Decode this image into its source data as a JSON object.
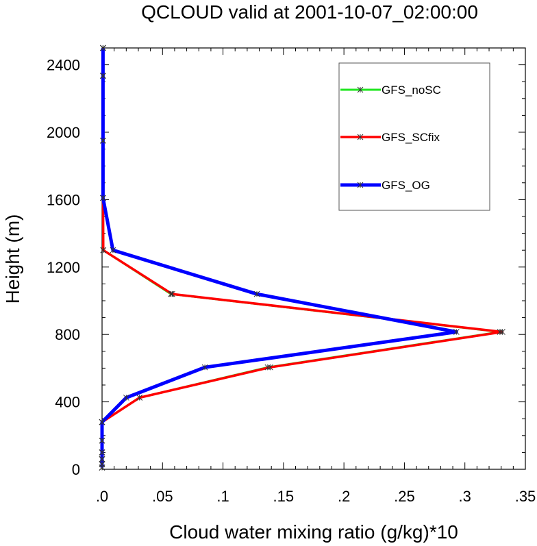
{
  "chart_data": {
    "type": "line",
    "title": "QCLOUD valid at 2001-10-07_02:00:00",
    "xlabel": "Cloud water mixing ratio (g/kg)*10",
    "ylabel": "Height (m)",
    "xlim": [
      0,
      0.35
    ],
    "ylim": [
      0,
      2500
    ],
    "x_ticks": [
      {
        "value": 0,
        "label": ".0"
      },
      {
        "value": 0.05,
        "label": ".05"
      },
      {
        "value": 0.1,
        "label": ".1"
      },
      {
        "value": 0.15,
        "label": ".15"
      },
      {
        "value": 0.2,
        "label": ".2"
      },
      {
        "value": 0.25,
        "label": ".25"
      },
      {
        "value": 0.3,
        "label": ".3"
      },
      {
        "value": 0.35,
        "label": ".35"
      }
    ],
    "y_ticks": [
      {
        "value": 0,
        "label": "0"
      },
      {
        "value": 400,
        "label": "400"
      },
      {
        "value": 800,
        "label": "800"
      },
      {
        "value": 1200,
        "label": "1200"
      },
      {
        "value": 1600,
        "label": "1600"
      },
      {
        "value": 2000,
        "label": "2000"
      },
      {
        "value": 2400,
        "label": "2400"
      }
    ],
    "heights": [
      10,
      30,
      60,
      100,
      170,
      280,
      425,
      605,
      815,
      1040,
      1300,
      1610,
      1950,
      2335,
      2500
    ],
    "series": [
      {
        "name": "GFS_noSC",
        "color": "#1ee61e",
        "width": 3,
        "values": [
          0,
          0,
          0,
          0,
          0,
          0,
          0.031,
          0.137,
          0.329,
          0.057,
          0.001,
          0.0008,
          0.0008,
          0.0008,
          0.0008
        ]
      },
      {
        "name": "GFS_SCfix",
        "color": "#ff0000",
        "width": 3.5,
        "values": [
          0,
          0,
          0,
          0,
          0,
          0,
          0.031,
          0.139,
          0.331,
          0.058,
          0.001,
          0.0008,
          0.0008,
          0.0008,
          0.0008
        ]
      },
      {
        "name": "GFS_OG",
        "color": "#0000ff",
        "width": 5,
        "values": [
          0,
          0,
          0,
          0,
          0,
          0,
          0.02,
          0.085,
          0.293,
          0.128,
          0.009,
          0.0008,
          0.0008,
          0.0008,
          0.0008
        ]
      }
    ],
    "grid": false,
    "legend_position": "top-right"
  }
}
